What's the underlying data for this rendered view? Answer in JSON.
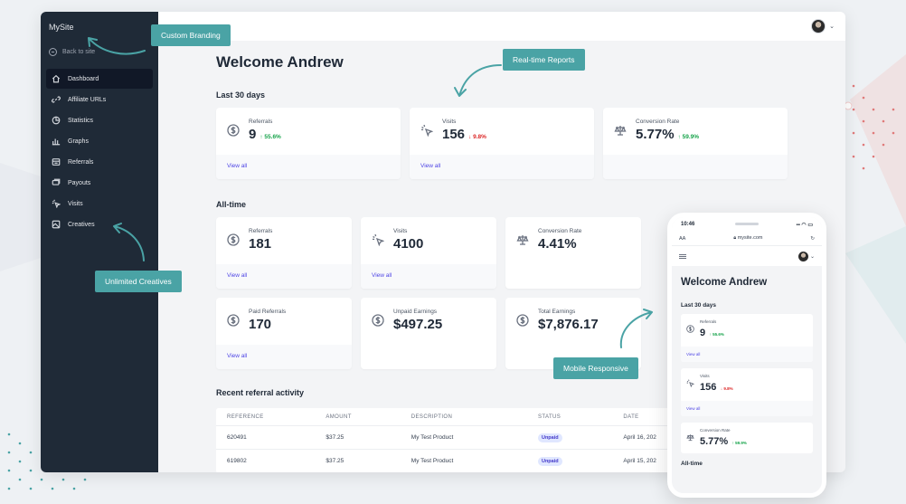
{
  "sidebar": {
    "brand": "MySite",
    "back_link": "Back to site",
    "items": [
      {
        "label": "Dashboard",
        "icon": "home-icon"
      },
      {
        "label": "Affiliate URLs",
        "icon": "link-icon"
      },
      {
        "label": "Statistics",
        "icon": "pie-chart-icon"
      },
      {
        "label": "Graphs",
        "icon": "bar-chart-icon"
      },
      {
        "label": "Referrals",
        "icon": "list-icon"
      },
      {
        "label": "Payouts",
        "icon": "payout-icon"
      },
      {
        "label": "Visits",
        "icon": "cursor-click-icon"
      },
      {
        "label": "Creatives",
        "icon": "image-icon"
      }
    ]
  },
  "main": {
    "welcome": "Welcome Andrew",
    "last30": {
      "title": "Last 30 days",
      "cards": [
        {
          "label": "Referrals",
          "value": "9",
          "delta": "55.6%",
          "direction": "up",
          "link": "View all",
          "icon": "dollar-circle-icon"
        },
        {
          "label": "Visits",
          "value": "156",
          "delta": "9.8%",
          "direction": "down",
          "link": "View all",
          "icon": "cursor-click-icon"
        },
        {
          "label": "Conversion Rate",
          "value": "5.77%",
          "delta": "59.9%",
          "direction": "up",
          "icon": "scale-icon"
        }
      ]
    },
    "alltime": {
      "title": "All-time",
      "row1": [
        {
          "label": "Referrals",
          "value": "181",
          "link": "View all",
          "icon": "dollar-circle-icon"
        },
        {
          "label": "Visits",
          "value": "4100",
          "link": "View all",
          "icon": "cursor-click-icon"
        },
        {
          "label": "Conversion Rate",
          "value": "4.41%",
          "icon": "scale-icon"
        }
      ],
      "row2": [
        {
          "label": "Paid Referrals",
          "value": "170",
          "link": "View all",
          "icon": "dollar-circle-icon"
        },
        {
          "label": "Unpaid Earnings",
          "value": "$497.25",
          "icon": "dollar-circle-icon"
        },
        {
          "label": "Total Earnings",
          "value": "$7,876.17",
          "icon": "dollar-circle-icon"
        }
      ]
    },
    "recent": {
      "title": "Recent referral activity",
      "columns": [
        "REFERENCE",
        "AMOUNT",
        "DESCRIPTION",
        "STATUS",
        "DATE"
      ],
      "rows": [
        {
          "reference": "620491",
          "amount": "$37.25",
          "description": "My Test Product",
          "status": "Unpaid",
          "date": "April 16, 202"
        },
        {
          "reference": "619802",
          "amount": "$37.25",
          "description": "My Test Product",
          "status": "Unpaid",
          "date": "April 15, 202"
        }
      ]
    }
  },
  "callouts": {
    "branding": "Custom Branding",
    "reports": "Real-time Reports",
    "creatives": "Unlimited Creatives",
    "mobile": "Mobile Responsive"
  },
  "phone": {
    "time": "10:46",
    "url_left": "AA",
    "url": "mysite.com",
    "welcome": "Welcome Andrew",
    "last30_title": "Last 30 days",
    "cards": [
      {
        "label": "Referrals",
        "value": "9",
        "delta": "55.6%",
        "direction": "up",
        "link": "View all"
      },
      {
        "label": "Visits",
        "value": "156",
        "delta": "9.8%",
        "direction": "down",
        "link": "View all"
      },
      {
        "label": "Conversion Rate",
        "value": "5.77%",
        "delta": "59.9%",
        "direction": "up"
      }
    ],
    "alltime_title": "All-time"
  },
  "colors": {
    "accent": "#4aa3a5",
    "sidebar": "#1f2a37",
    "link": "#4f46e5",
    "up": "#16a34a",
    "down": "#dc2626"
  }
}
